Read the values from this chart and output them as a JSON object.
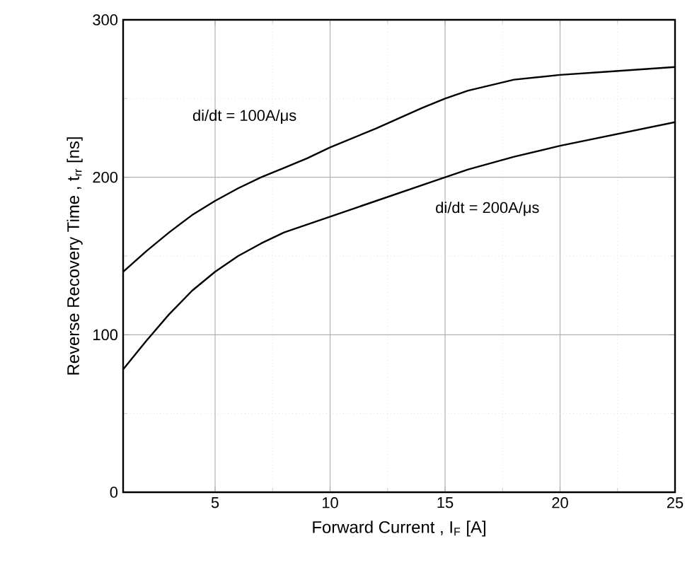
{
  "chart_data": {
    "type": "line",
    "xlabel": "Forward Current , I$_{F}$ [A]",
    "ylabel": "Reverse Recovery Time , t$_{rr}$ [ns]",
    "xlim": [
      1,
      25
    ],
    "ylim": [
      0,
      300
    ],
    "xticks": [
      5,
      10,
      15,
      20,
      25
    ],
    "yticks": [
      0,
      100,
      200,
      300
    ],
    "grid": true,
    "marker": "none",
    "line_style": "solid",
    "series": [
      {
        "name": "di/dt = 100A/μs",
        "color": "#000000",
        "x": [
          1,
          2,
          3,
          4,
          5,
          6,
          7,
          8,
          9,
          10,
          12,
          14,
          15,
          16,
          18,
          20,
          22,
          25
        ],
        "values": [
          140,
          153,
          165,
          176,
          185,
          193,
          200,
          206,
          212,
          219,
          231,
          244,
          250,
          255,
          262,
          265,
          267,
          270
        ]
      },
      {
        "name": "di/dt = 200A/μs",
        "color": "#000000",
        "x": [
          1,
          2,
          3,
          4,
          5,
          6,
          7,
          8,
          9,
          10,
          12,
          14,
          15,
          16,
          18,
          20,
          22,
          25
        ],
        "values": [
          78,
          96,
          113,
          128,
          140,
          150,
          158,
          165,
          170,
          175,
          185,
          195,
          200,
          205,
          213,
          220,
          226,
          235
        ]
      }
    ]
  }
}
